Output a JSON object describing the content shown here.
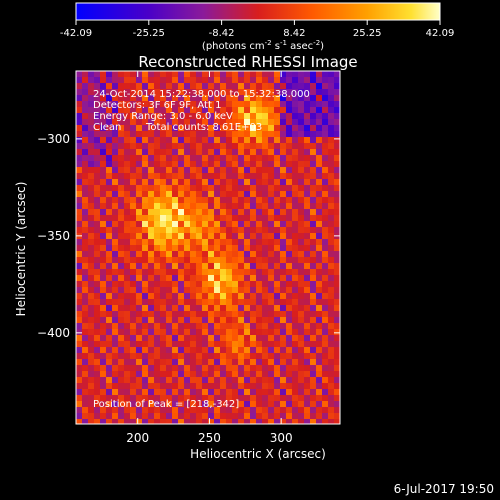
{
  "colorbar": {
    "tick_labels": [
      "-42.09",
      "-25.25",
      "-8.42",
      "8.42",
      "25.25",
      "42.09"
    ],
    "range": [
      -42.09,
      42.09
    ],
    "units_main": "(photons cm",
    "units_exp1": "-2",
    "units_mid": " s",
    "units_exp2": "-1",
    "units_tail": " asec",
    "units_exp3": "-2",
    "units_close": ")"
  },
  "annotations": {
    "time": "24-Oct-2014 15:22:38.000 to 15:32:38.000",
    "detectors": "Detectors: 3F 6F 9F, Att 1",
    "energy": "Energy Range: 3.0 - 6.0 keV",
    "method": "Clean",
    "counts": "Total counts: 8.61E+03",
    "peak": "Position of Peak = [218,-342]"
  },
  "footer": {
    "date": "6-Jul-2017 19:50"
  },
  "colors": {
    "background": "#000000",
    "colormap": [
      "#0000ff",
      "#4a00c8",
      "#8b1a9a",
      "#d81e1e",
      "#ff5a00",
      "#ffa000",
      "#ffe030",
      "#ffffc8"
    ]
  },
  "chart_data": {
    "type": "heatmap",
    "title": "Reconstructed RHESSI Image",
    "xlabel": "Heliocentric X (arcsec)",
    "ylabel": "Heliocentric Y (arcsec)",
    "xlim": [
      157,
      341
    ],
    "ylim": [
      -447,
      -265
    ],
    "xticks": [
      200,
      250,
      300
    ],
    "yticks": [
      -300,
      -350,
      -400
    ],
    "peak": [
      218,
      -342
    ],
    "sources": [
      {
        "x": 218,
        "y": -342,
        "amp": 1.0,
        "sigma": 12
      },
      {
        "x": 245,
        "y": -345,
        "amp": 0.5,
        "sigma": 10
      },
      {
        "x": 258,
        "y": -373,
        "amp": 0.85,
        "sigma": 10
      },
      {
        "x": 278,
        "y": -290,
        "amp": 0.7,
        "sigma": 9
      },
      {
        "x": 290,
        "y": -290,
        "amp": 0.45,
        "sigma": 8
      },
      {
        "x": 270,
        "y": -405,
        "amp": 0.45,
        "sigma": 8
      }
    ]
  }
}
